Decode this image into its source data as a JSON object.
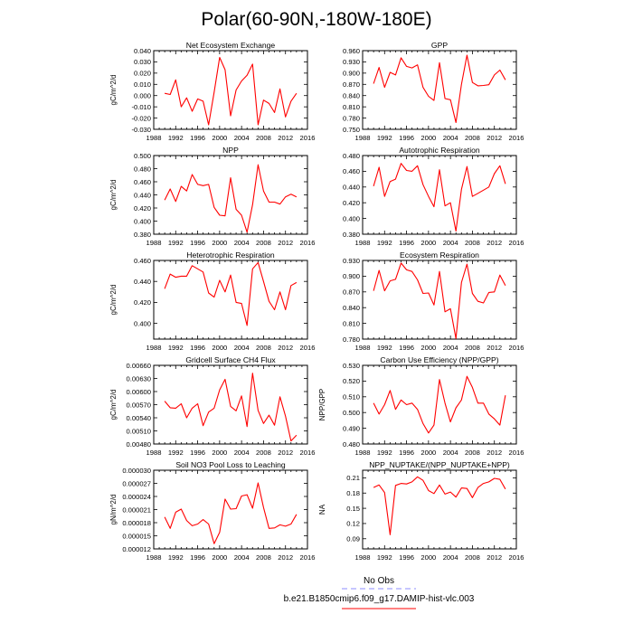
{
  "figure": {
    "title": "Polar(60-90N,-180W-180E)",
    "legend": {
      "obs_label": "No Obs",
      "obs_color": "#8c8cff",
      "model_label": "b.e21.B1850cmip6.f09_g17.DAMIP-hist-vlc.003",
      "model_color": "#ff0000"
    }
  },
  "chart_data": [
    {
      "type": "line",
      "title": "Net Ecosystem Exchange",
      "xlabel": "",
      "ylabel": "gC/m^2/d",
      "xlim": [
        1988,
        2016
      ],
      "x_ticks": [
        "1988",
        "1992",
        "1996",
        "2000",
        "2004",
        "2008",
        "2012",
        "2016"
      ],
      "ylim": [
        -0.03,
        0.04
      ],
      "y_ticks": [
        "-0.030",
        "-0.020",
        "-0.010",
        "0.000",
        "0.010",
        "0.020",
        "0.030",
        "0.040"
      ],
      "series": [
        {
          "name": "b.e21.B1850cmip6.f09_g17.DAMIP-hist-vlc.003",
          "x": [
            1990,
            1991,
            1992,
            1993,
            1994,
            1995,
            1996,
            1997,
            1998,
            1999,
            2000,
            2001,
            2002,
            2003,
            2004,
            2005,
            2006,
            2007,
            2008,
            2009,
            2010,
            2011,
            2012,
            2013,
            2014
          ],
          "values": [
            0.002,
            0.001,
            0.014,
            -0.01,
            -0.002,
            -0.014,
            -0.003,
            -0.005,
            -0.026,
            0.003,
            0.034,
            0.023,
            -0.018,
            0.005,
            0.013,
            0.018,
            0.028,
            -0.026,
            -0.004,
            -0.007,
            -0.015,
            0.006,
            -0.019,
            -0.005,
            0.002
          ]
        }
      ]
    },
    {
      "type": "line",
      "title": "GPP",
      "xlabel": "",
      "ylabel": "",
      "xlim": [
        1988,
        2016
      ],
      "x_ticks": [
        "1988",
        "1992",
        "1996",
        "2000",
        "2004",
        "2008",
        "2012",
        "2016"
      ],
      "ylim": [
        0.75,
        0.96
      ],
      "y_ticks": [
        "0.750",
        "0.780",
        "0.810",
        "0.840",
        "0.870",
        "0.900",
        "0.930",
        "0.960"
      ],
      "series": [
        {
          "name": "b.e21.B1850cmip6.f09_g17.DAMIP-hist-vlc.003",
          "x": [
            1990,
            1991,
            1992,
            1993,
            1994,
            1995,
            1996,
            1997,
            1998,
            1999,
            2000,
            2001,
            2002,
            2003,
            2004,
            2005,
            2006,
            2007,
            2008,
            2009,
            2010,
            2011,
            2012,
            2013,
            2014
          ],
          "values": [
            0.872,
            0.915,
            0.862,
            0.902,
            0.895,
            0.941,
            0.918,
            0.914,
            0.922,
            0.862,
            0.838,
            0.827,
            0.928,
            0.832,
            0.829,
            0.768,
            0.87,
            0.948,
            0.875,
            0.866,
            0.867,
            0.869,
            0.895,
            0.908,
            0.882
          ]
        }
      ]
    },
    {
      "type": "line",
      "title": "NPP",
      "xlabel": "",
      "ylabel": "gC/m^2/d",
      "xlim": [
        1988,
        2016
      ],
      "x_ticks": [
        "1988",
        "1992",
        "1996",
        "2000",
        "2004",
        "2008",
        "2012",
        "2016"
      ],
      "ylim": [
        0.38,
        0.5
      ],
      "y_ticks": [
        "0.380",
        "0.400",
        "0.420",
        "0.440",
        "0.460",
        "0.480",
        "0.500"
      ],
      "series": [
        {
          "name": "b.e21.B1850cmip6.f09_g17.DAMIP-hist-vlc.003",
          "x": [
            1990,
            1991,
            1992,
            1993,
            1994,
            1995,
            1996,
            1997,
            1998,
            1999,
            2000,
            2001,
            2002,
            2003,
            2004,
            2005,
            2006,
            2007,
            2008,
            2009,
            2010,
            2011,
            2012,
            2013,
            2014
          ],
          "values": [
            0.432,
            0.449,
            0.43,
            0.453,
            0.446,
            0.471,
            0.456,
            0.454,
            0.456,
            0.421,
            0.409,
            0.408,
            0.466,
            0.418,
            0.409,
            0.383,
            0.425,
            0.486,
            0.446,
            0.429,
            0.429,
            0.426,
            0.437,
            0.441,
            0.437
          ]
        }
      ]
    },
    {
      "type": "line",
      "title": "Autotrophic Respiration",
      "xlabel": "",
      "ylabel": "",
      "xlim": [
        1988,
        2016
      ],
      "x_ticks": [
        "1988",
        "1992",
        "1996",
        "2000",
        "2004",
        "2008",
        "2012",
        "2016"
      ],
      "ylim": [
        0.38,
        0.48
      ],
      "y_ticks": [
        "0.380",
        "0.400",
        "0.420",
        "0.440",
        "0.460",
        "0.480"
      ],
      "series": [
        {
          "name": "b.e21.B1850cmip6.f09_g17.DAMIP-hist-vlc.003",
          "x": [
            1990,
            1991,
            1992,
            1993,
            1994,
            1995,
            1996,
            1997,
            1998,
            1999,
            2000,
            2001,
            2002,
            2003,
            2004,
            2005,
            2006,
            2007,
            2008,
            2009,
            2010,
            2011,
            2012,
            2013,
            2014
          ],
          "values": [
            0.441,
            0.465,
            0.428,
            0.447,
            0.45,
            0.47,
            0.461,
            0.46,
            0.467,
            0.443,
            0.428,
            0.415,
            0.462,
            0.416,
            0.42,
            0.384,
            0.437,
            0.466,
            0.428,
            0.432,
            0.436,
            0.44,
            0.457,
            0.467,
            0.444
          ]
        }
      ]
    },
    {
      "type": "line",
      "title": "Heterotrophic Respiration",
      "xlabel": "",
      "ylabel": "gC/m^2/d",
      "xlim": [
        1988,
        2016
      ],
      "x_ticks": [
        "1988",
        "1992",
        "1996",
        "2000",
        "2004",
        "2008",
        "2012",
        "2016"
      ],
      "ylim": [
        0.385,
        0.46
      ],
      "y_ticks": [
        "0.400",
        "0.420",
        "0.440",
        "0.460"
      ],
      "series": [
        {
          "name": "b.e21.B1850cmip6.f09_g17.DAMIP-hist-vlc.003",
          "x": [
            1990,
            1991,
            1992,
            1993,
            1994,
            1995,
            1996,
            1997,
            1998,
            1999,
            2000,
            2001,
            2002,
            2003,
            2004,
            2005,
            2006,
            2007,
            2008,
            2009,
            2010,
            2011,
            2012,
            2013,
            2014
          ],
          "values": [
            0.433,
            0.447,
            0.444,
            0.445,
            0.445,
            0.455,
            0.452,
            0.449,
            0.429,
            0.425,
            0.441,
            0.43,
            0.446,
            0.42,
            0.419,
            0.398,
            0.452,
            0.458,
            0.44,
            0.421,
            0.413,
            0.43,
            0.413,
            0.436,
            0.439
          ]
        }
      ]
    },
    {
      "type": "line",
      "title": "Ecosystem Respiration",
      "xlabel": "",
      "ylabel": "",
      "xlim": [
        1988,
        2016
      ],
      "x_ticks": [
        "1988",
        "1992",
        "1996",
        "2000",
        "2004",
        "2008",
        "2012",
        "2016"
      ],
      "ylim": [
        0.78,
        0.93
      ],
      "y_ticks": [
        "0.780",
        "0.810",
        "0.840",
        "0.870",
        "0.900",
        "0.930"
      ],
      "series": [
        {
          "name": "b.e21.B1850cmip6.f09_g17.DAMIP-hist-vlc.003",
          "x": [
            1990,
            1991,
            1992,
            1993,
            1994,
            1995,
            1996,
            1997,
            1998,
            1999,
            2000,
            2001,
            2002,
            2003,
            2004,
            2005,
            2006,
            2007,
            2008,
            2009,
            2010,
            2011,
            2012,
            2013,
            2014
          ],
          "values": [
            0.872,
            0.911,
            0.872,
            0.891,
            0.894,
            0.925,
            0.912,
            0.909,
            0.893,
            0.867,
            0.868,
            0.845,
            0.909,
            0.832,
            0.838,
            0.781,
            0.888,
            0.923,
            0.867,
            0.852,
            0.849,
            0.869,
            0.87,
            0.902,
            0.882
          ]
        }
      ]
    },
    {
      "type": "line",
      "title": "Gridcell Surface CH4 Flux",
      "xlabel": "",
      "ylabel": "gC/m^2/d",
      "xlim": [
        1988,
        2016
      ],
      "x_ticks": [
        "1988",
        "1992",
        "1996",
        "2000",
        "2004",
        "2008",
        "2012",
        "2016"
      ],
      "ylim": [
        0.0048,
        0.0066
      ],
      "y_ticks": [
        "0.00480",
        "0.00510",
        "0.00540",
        "0.00570",
        "0.00600",
        "0.00630",
        "0.00660"
      ],
      "series": [
        {
          "name": "b.e21.B1850cmip6.f09_g17.DAMIP-hist-vlc.003",
          "x": [
            1990,
            1991,
            1992,
            1993,
            1994,
            1995,
            1996,
            1997,
            1998,
            1999,
            2000,
            2001,
            2002,
            2003,
            2004,
            2005,
            2006,
            2007,
            2008,
            2009,
            2010,
            2011,
            2012,
            2013,
            2014
          ],
          "values": [
            0.00578,
            0.00563,
            0.00562,
            0.00572,
            0.0054,
            0.00562,
            0.00572,
            0.00522,
            0.00553,
            0.00562,
            0.00604,
            0.00628,
            0.00566,
            0.00556,
            0.0059,
            0.0052,
            0.00642,
            0.00557,
            0.00527,
            0.00546,
            0.00523,
            0.00588,
            0.00544,
            0.00487,
            0.005
          ]
        }
      ]
    },
    {
      "type": "line",
      "title": "Carbon Use Efficiency (NPP/GPP)",
      "xlabel": "",
      "ylabel": "NPP/GPP",
      "xlim": [
        1988,
        2016
      ],
      "x_ticks": [
        "1988",
        "1992",
        "1996",
        "2000",
        "2004",
        "2008",
        "2012",
        "2016"
      ],
      "ylim": [
        0.48,
        0.53
      ],
      "y_ticks": [
        "0.480",
        "0.490",
        "0.500",
        "0.510",
        "0.520",
        "0.530"
      ],
      "series": [
        {
          "name": "b.e21.B1850cmip6.f09_g17.DAMIP-hist-vlc.003",
          "x": [
            1990,
            1991,
            1992,
            1993,
            1994,
            1995,
            1996,
            1997,
            1998,
            1999,
            2000,
            2001,
            2002,
            2003,
            2004,
            2005,
            2006,
            2007,
            2008,
            2009,
            2010,
            2011,
            2012,
            2013,
            2014
          ],
          "values": [
            0.506,
            0.499,
            0.505,
            0.514,
            0.502,
            0.508,
            0.505,
            0.506,
            0.502,
            0.493,
            0.487,
            0.492,
            0.521,
            0.506,
            0.494,
            0.503,
            0.508,
            0.523,
            0.516,
            0.506,
            0.506,
            0.499,
            0.496,
            0.492,
            0.511
          ]
        }
      ]
    },
    {
      "type": "line",
      "title": "Soil NO3 Pool Loss to Leaching",
      "xlabel": "",
      "ylabel": "gN/m^2/d",
      "xlim": [
        1988,
        2016
      ],
      "x_ticks": [
        "1988",
        "1992",
        "1996",
        "2000",
        "2004",
        "2008",
        "2012",
        "2016"
      ],
      "ylim": [
        1.2e-05,
        3e-05
      ],
      "y_ticks": [
        "0.000012",
        "0.000015",
        "0.000018",
        "0.000021",
        "0.000024",
        "0.000027",
        "0.000030"
      ],
      "series": [
        {
          "name": "b.e21.B1850cmip6.f09_g17.DAMIP-hist-vlc.003",
          "x": [
            1990,
            1991,
            1992,
            1993,
            1994,
            1995,
            1996,
            1997,
            1998,
            1999,
            2000,
            2001,
            2002,
            2003,
            2004,
            2005,
            2006,
            2007,
            2008,
            2009,
            2010,
            2011,
            2012,
            2013,
            2014
          ],
          "values": [
            1.93e-05,
            1.67e-05,
            2.04e-05,
            2.11e-05,
            1.85e-05,
            1.73e-05,
            1.77e-05,
            1.87e-05,
            1.77e-05,
            1.32e-05,
            1.58e-05,
            2.34e-05,
            2.11e-05,
            2.12e-05,
            2.41e-05,
            2.44e-05,
            2.13e-05,
            2.71e-05,
            2.15e-05,
            1.67e-05,
            1.68e-05,
            1.75e-05,
            1.72e-05,
            1.77e-05,
            1.99e-05
          ]
        }
      ]
    },
    {
      "type": "line",
      "title": "NPP_NUPTAKE/(NPP_NUPTAKE+NPP)",
      "xlabel": "",
      "ylabel": "NA",
      "xlim": [
        1988,
        2016
      ],
      "x_ticks": [
        "1988",
        "1992",
        "1996",
        "2000",
        "2004",
        "2008",
        "2012",
        "2016"
      ],
      "ylim": [
        0.07,
        0.225
      ],
      "y_ticks": [
        "0.09",
        "0.12",
        "0.15",
        "0.18",
        "0.21"
      ],
      "series": [
        {
          "name": "b.e21.B1850cmip6.f09_g17.DAMIP-hist-vlc.003",
          "x": [
            1990,
            1991,
            1992,
            1993,
            1994,
            1995,
            1996,
            1997,
            1998,
            1999,
            2000,
            2001,
            2002,
            2003,
            2004,
            2005,
            2006,
            2007,
            2008,
            2009,
            2010,
            2011,
            2012,
            2013,
            2014
          ],
          "values": [
            0.191,
            0.196,
            0.181,
            0.098,
            0.195,
            0.199,
            0.198,
            0.202,
            0.212,
            0.205,
            0.185,
            0.179,
            0.196,
            0.178,
            0.182,
            0.172,
            0.19,
            0.189,
            0.171,
            0.191,
            0.199,
            0.202,
            0.209,
            0.207,
            0.188
          ]
        }
      ]
    }
  ]
}
